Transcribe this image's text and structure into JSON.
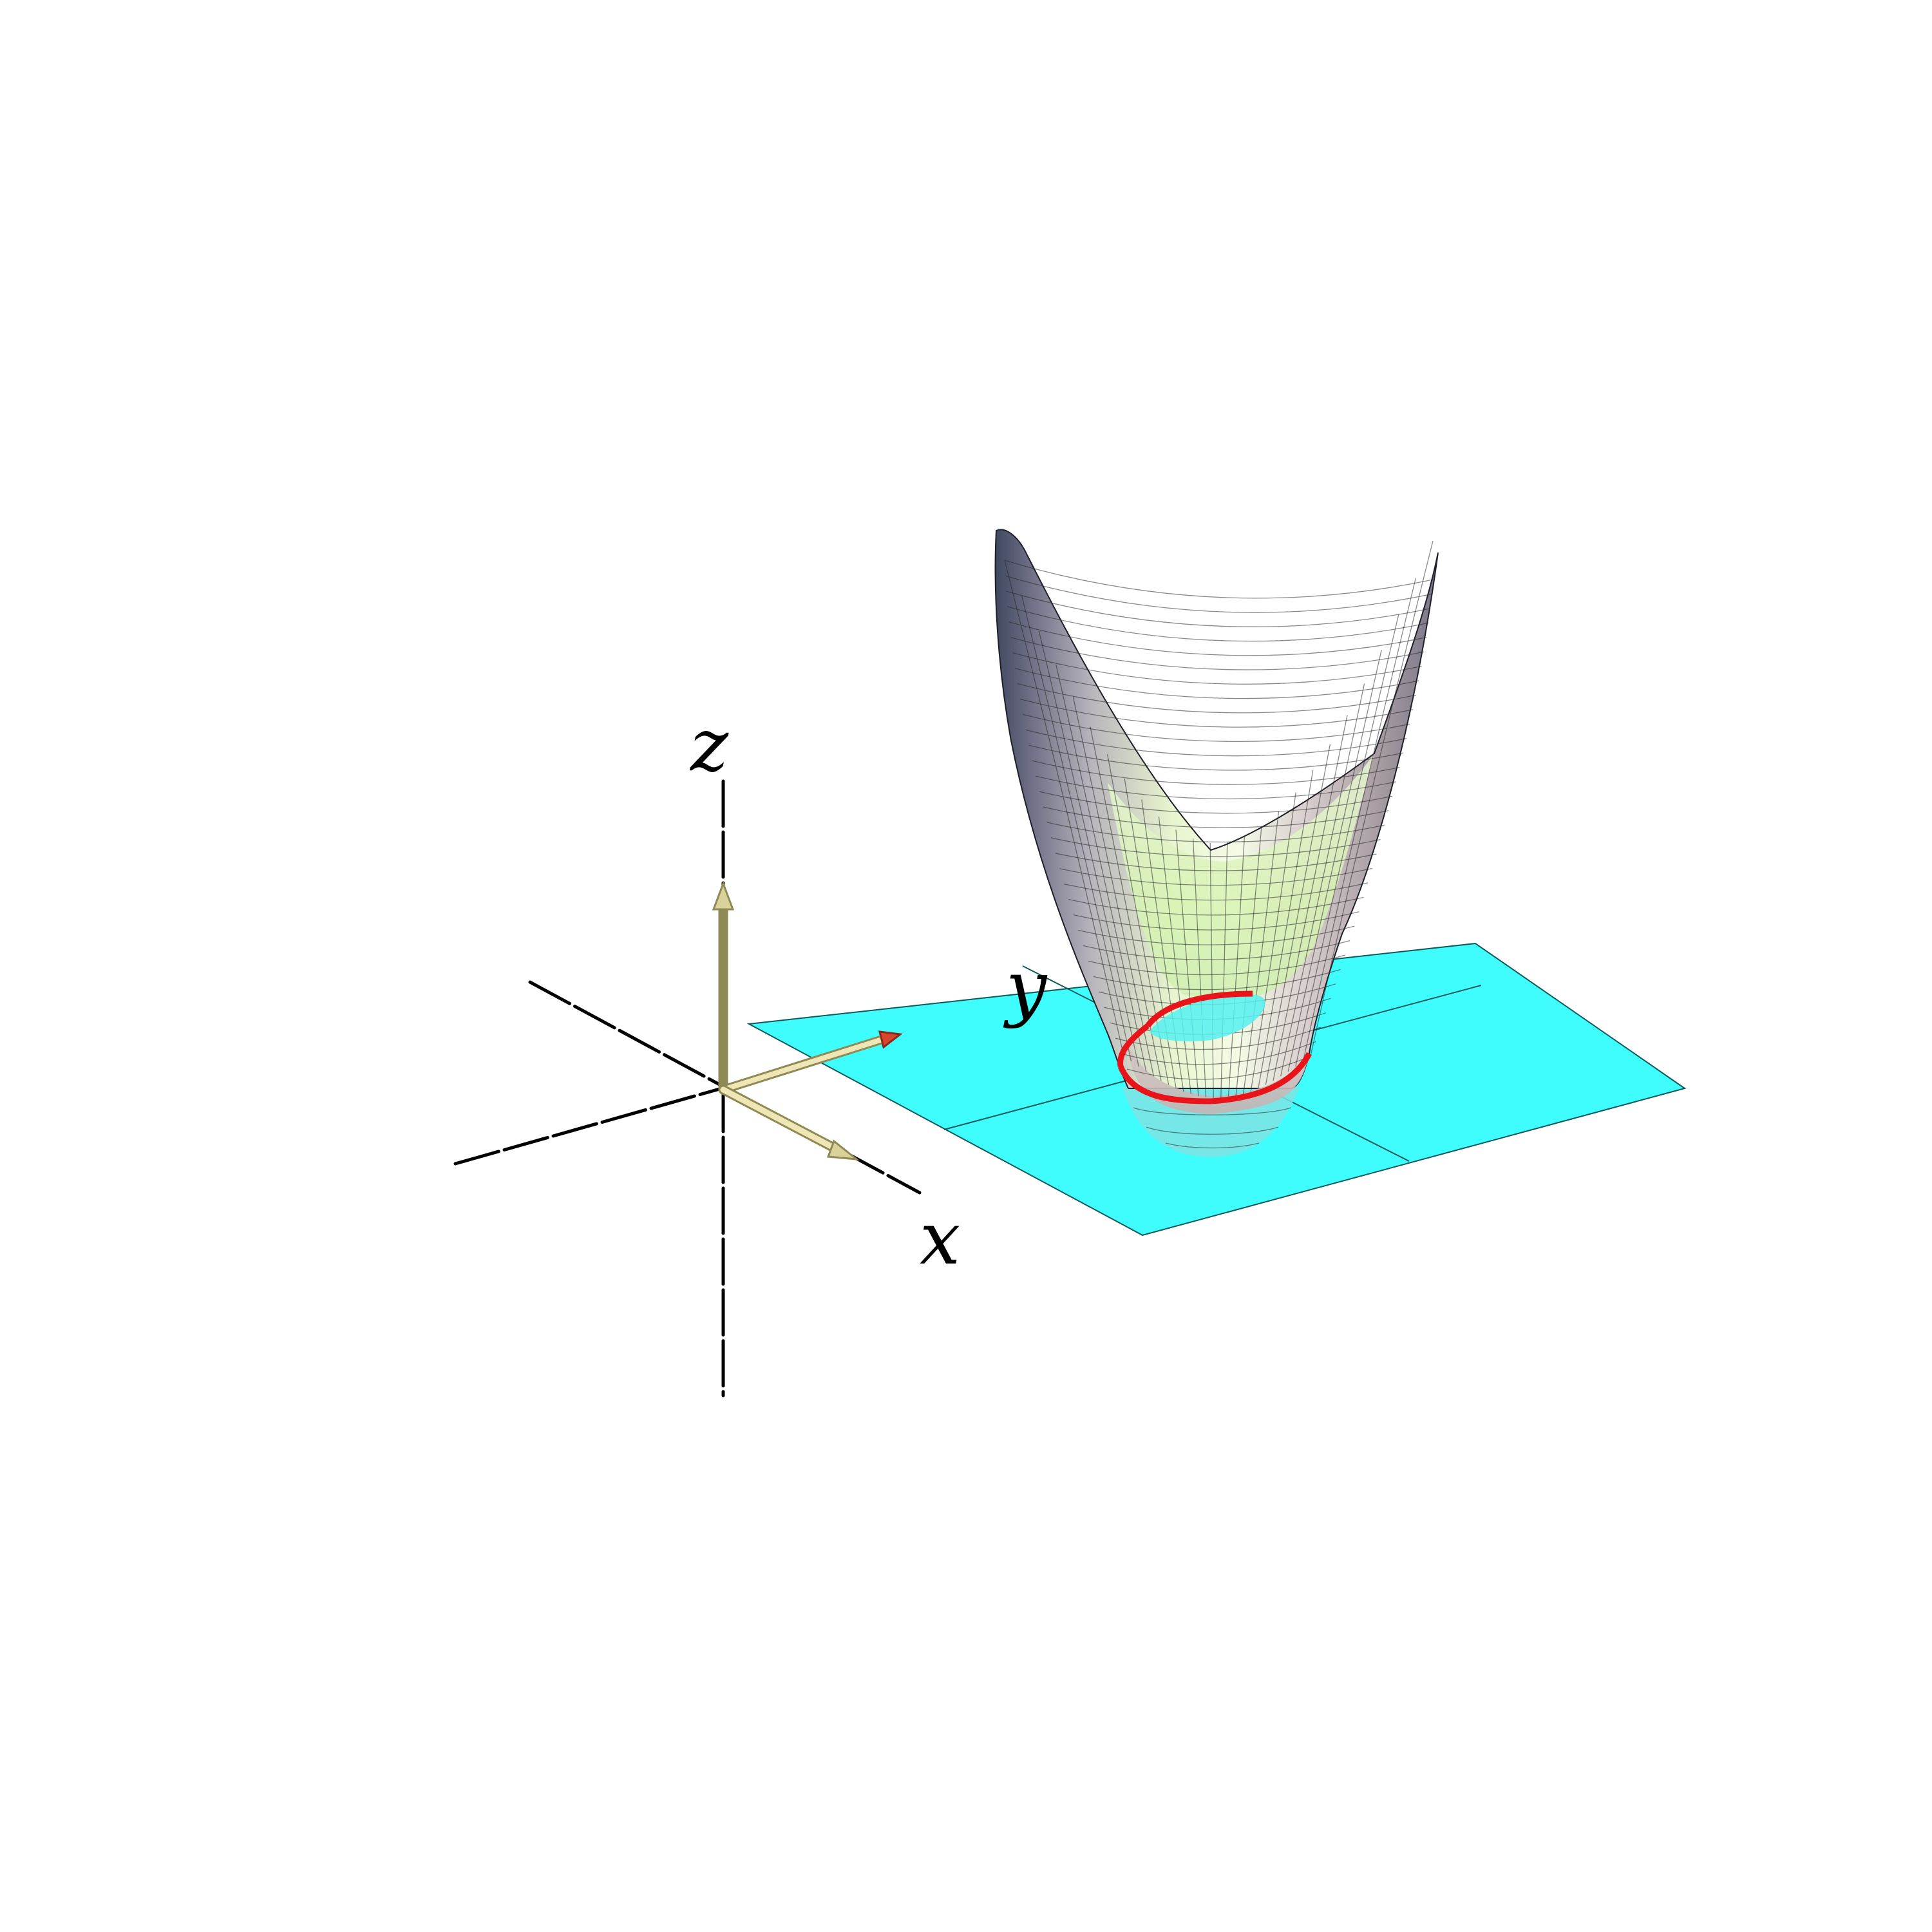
{
  "figure": {
    "axis_labels": {
      "x": "x",
      "y": "y",
      "z": "z"
    },
    "colors": {
      "background": "#ffffff",
      "plane": "#3ffdfd",
      "plane_grid": "#1a6e6e",
      "surface_light": "#f2fbe4",
      "surface_mid": "#d8c8c6",
      "surface_dark": "#4c4f66",
      "surface_below_plane": "#7fe3e3",
      "intersection_curve": "#e8141a",
      "unit_vectors": "#d9d29a",
      "unit_vector_tip_y": "#d8452f",
      "axes": "#000000"
    },
    "icons": [
      "z-unit-vector-arrow",
      "y-unit-vector-arrow",
      "x-unit-vector-arrow"
    ]
  }
}
